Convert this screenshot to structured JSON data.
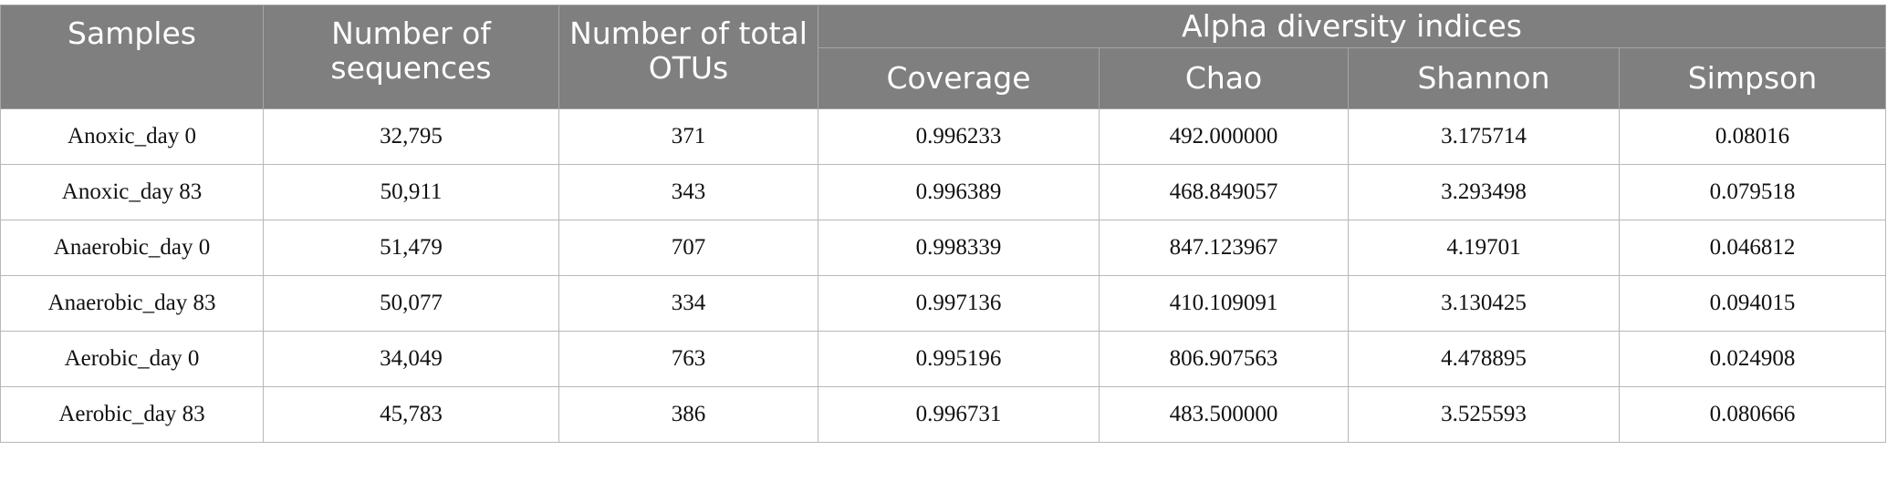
{
  "table": {
    "header": {
      "top": [
        "Samples",
        "Number of sequences",
        "Number of total OTUs",
        "Alpha diversity indices"
      ],
      "sub": [
        "Coverage",
        "Chao",
        "Shannon",
        "Simpson"
      ]
    },
    "rows": [
      [
        "Anoxic_day 0",
        "32,795",
        "371",
        "0.996233",
        "492.000000",
        "3.175714",
        "0.08016"
      ],
      [
        "Anoxic_day 83",
        "50,911",
        "343",
        "0.996389",
        "468.849057",
        "3.293498",
        "0.079518"
      ],
      [
        "Anaerobic_day 0",
        "51,479",
        "707",
        "0.998339",
        "847.123967",
        "4.19701",
        "0.046812"
      ],
      [
        "Anaerobic_day 83",
        "50,077",
        "334",
        "0.997136",
        "410.109091",
        "3.130425",
        "0.094015"
      ],
      [
        "Aerobic_day 0",
        "34,049",
        "763",
        "0.995196",
        "806.907563",
        "4.478895",
        "0.024908"
      ],
      [
        "Aerobic_day 83",
        "45,783",
        "386",
        "0.996731",
        "483.500000",
        "3.525593",
        "0.080666"
      ]
    ]
  }
}
